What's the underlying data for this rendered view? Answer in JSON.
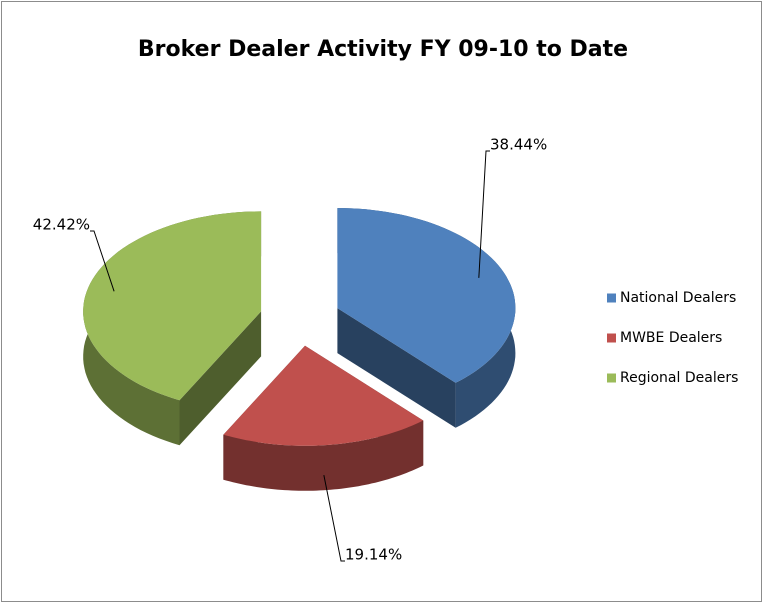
{
  "chart_data": {
    "type": "pie",
    "title": "Broker Dealer Activity FY 09-10 to Date",
    "categories": [
      "National Dealers",
      "MWBE Dealers",
      "Regional Dealers"
    ],
    "values": [
      38.44,
      19.14,
      42.42
    ],
    "value_labels": [
      "38.44%",
      "19.14%",
      "42.42%"
    ],
    "colors": [
      "#4f81bd",
      "#c0504d",
      "#9bbb59"
    ],
    "legend": "right"
  }
}
